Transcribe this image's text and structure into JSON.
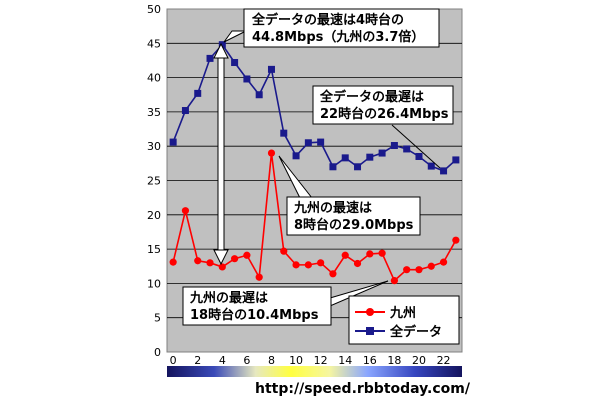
{
  "chart_data": {
    "type": "line",
    "title": "",
    "xlabel": "",
    "ylabel": "",
    "x": [
      0,
      1,
      2,
      3,
      4,
      5,
      6,
      7,
      8,
      9,
      10,
      11,
      12,
      13,
      14,
      15,
      16,
      17,
      18,
      19,
      20,
      21,
      22,
      23
    ],
    "xticks": [
      "0",
      "2",
      "4",
      "6",
      "8",
      "10",
      "12",
      "14",
      "16",
      "18",
      "20",
      "22"
    ],
    "ylim": [
      0,
      50
    ],
    "yticks": [
      "0",
      "5",
      "10",
      "15",
      "20",
      "25",
      "30",
      "35",
      "40",
      "45",
      "50"
    ],
    "grid": "horizontal",
    "legend_position": "bottom-right",
    "series": [
      {
        "name": "九州",
        "color": "#ff0000",
        "marker": "circle",
        "values": [
          13.1,
          20.6,
          13.3,
          13.0,
          12.4,
          13.6,
          14.1,
          10.9,
          29.0,
          14.7,
          12.7,
          12.7,
          13.0,
          11.4,
          14.1,
          12.9,
          14.3,
          14.4,
          10.4,
          12.0,
          12.0,
          12.5,
          13.1,
          16.3
        ]
      },
      {
        "name": "全データ",
        "color": "#1a1a8c",
        "marker": "square",
        "values": [
          30.6,
          35.2,
          37.7,
          42.8,
          44.8,
          42.2,
          39.8,
          37.5,
          41.2,
          31.9,
          28.6,
          30.5,
          30.6,
          27.0,
          28.3,
          27.0,
          28.4,
          29.0,
          30.1,
          29.6,
          28.5,
          27.1,
          26.4,
          28.0
        ]
      }
    ],
    "annotations": [
      {
        "text": [
          "全データの最速は4時台の",
          "44.8Mbps（九州の3.7倍）"
        ]
      },
      {
        "text": [
          "全データの最遅は",
          "22時台の26.4Mbps"
        ]
      },
      {
        "text": [
          "九州の最速は",
          "8時台の29.0Mbps"
        ]
      },
      {
        "text": [
          "九州の最遅は",
          "18時台の10.4Mbps"
        ]
      }
    ]
  },
  "source_url": "http://speed.rbbtoday.com/"
}
